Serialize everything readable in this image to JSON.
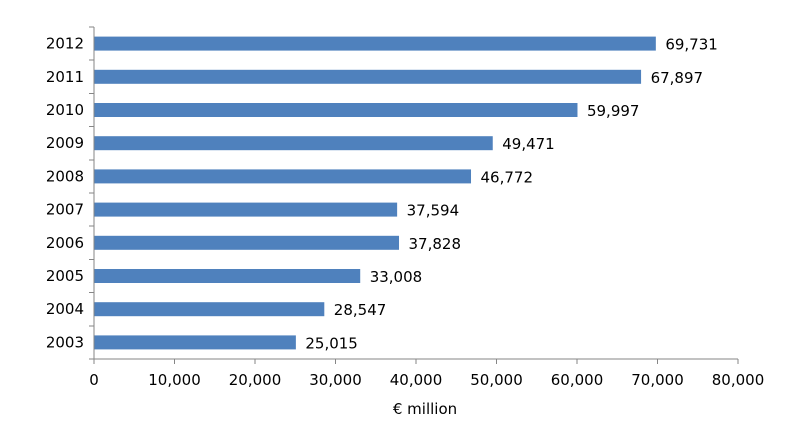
{
  "chart_data": {
    "type": "bar",
    "orientation": "horizontal",
    "categories": [
      "2003",
      "2004",
      "2005",
      "2006",
      "2007",
      "2008",
      "2009",
      "2010",
      "2011",
      "2012"
    ],
    "values": [
      25015,
      28547,
      33008,
      37828,
      37594,
      46772,
      49471,
      59997,
      67897,
      69731
    ],
    "value_labels": [
      "25,015",
      "28,547",
      "33,008",
      "37,828",
      "37,594",
      "46,772",
      "49,471",
      "59,997",
      "67,897",
      "69,731"
    ],
    "title": "",
    "xlabel": "€ million",
    "ylabel": "",
    "xlim": [
      0,
      80000
    ],
    "x_ticks": [
      0,
      10000,
      20000,
      30000,
      40000,
      50000,
      60000,
      70000,
      80000
    ],
    "x_tick_labels": [
      "0",
      "10,000",
      "20,000",
      "30,000",
      "40,000",
      "50,000",
      "60,000",
      "70,000",
      "80,000"
    ],
    "grid": false,
    "legend": "none",
    "bar_color": "#4F81BD",
    "axis_color": "#868686"
  }
}
